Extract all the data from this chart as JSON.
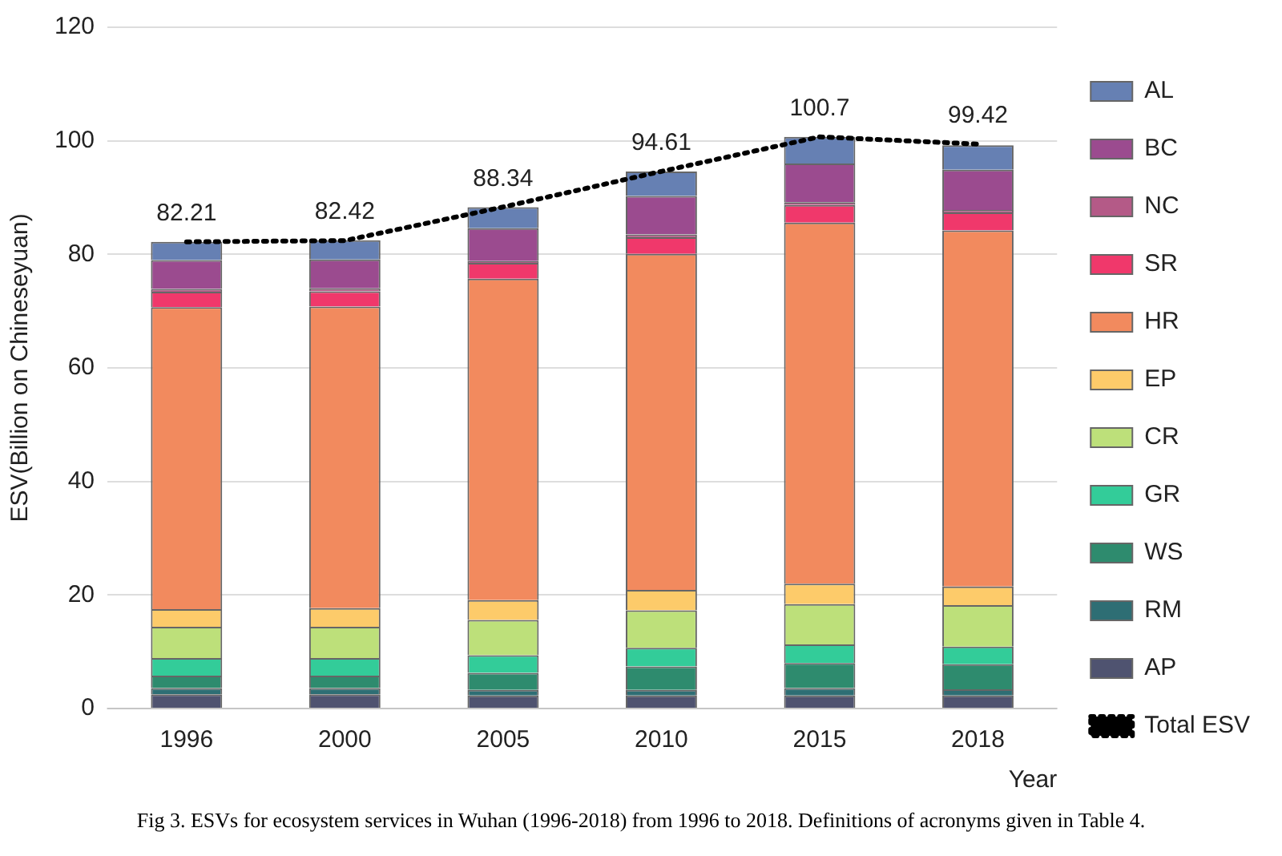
{
  "chart_data": {
    "type": "bar",
    "stacked": true,
    "ylabel": "ESV(Billion on Chineseyuan)",
    "xlabel": "Year",
    "categories": [
      "1996",
      "2000",
      "2005",
      "2010",
      "2015",
      "2018"
    ],
    "series": [
      {
        "name": "AP",
        "color": "#4f5370",
        "values": [
          2.5,
          2.5,
          2.3,
          2.3,
          2.3,
          2.3
        ]
      },
      {
        "name": "RM",
        "color": "#2e6e74",
        "values": [
          1.1,
          1.1,
          1.0,
          1.0,
          1.3,
          1.1
        ]
      },
      {
        "name": "WS",
        "color": "#2e8b6e",
        "values": [
          2.2,
          2.2,
          3.0,
          4.1,
          4.4,
          4.4
        ]
      },
      {
        "name": "GR",
        "color": "#33cc99",
        "values": [
          3.1,
          3.1,
          3.1,
          3.3,
          3.3,
          3.1
        ]
      },
      {
        "name": "CR",
        "color": "#bde07a",
        "values": [
          5.5,
          5.5,
          6.2,
          6.6,
          7.1,
          7.3
        ]
      },
      {
        "name": "EP",
        "color": "#fdcb6a",
        "values": [
          3.1,
          3.3,
          3.5,
          3.6,
          3.6,
          3.3
        ]
      },
      {
        "name": "HR",
        "color": "#f28a5e",
        "values": [
          53.2,
          53.1,
          56.6,
          59.2,
          63.6,
          62.7
        ]
      },
      {
        "name": "SR",
        "color": "#f0386b",
        "values": [
          2.7,
          2.7,
          2.8,
          2.9,
          3.1,
          3.2
        ]
      },
      {
        "name": "NC",
        "color": "#b45a87",
        "values": [
          0.5,
          0.5,
          0.3,
          0.5,
          0.5,
          0.4
        ]
      },
      {
        "name": "BC",
        "color": "#9b4b8f",
        "values": [
          5.1,
          5.1,
          5.8,
          6.8,
          6.8,
          7.1
        ]
      },
      {
        "name": "AL",
        "color": "#6680b3",
        "values": [
          3.2,
          3.4,
          3.7,
          4.3,
          4.7,
          4.3
        ]
      },
      {
        "name": "Total ESV",
        "type": "line",
        "color": "#000000",
        "line_style": "dotted",
        "marker": "none",
        "data_labels": true,
        "values": [
          82.21,
          82.42,
          88.34,
          94.61,
          100.7,
          99.42
        ]
      }
    ],
    "ylim": [
      0,
      120
    ],
    "yticks": [
      0,
      20,
      40,
      60,
      80,
      100,
      120
    ],
    "grid": "y",
    "legend": "right",
    "annotations": [
      "Fig 3. ESVs for ecosystem services in Wuhan (1996-2018) from 1996 to 2018. Definitions of acronyms given in Table 4."
    ]
  }
}
